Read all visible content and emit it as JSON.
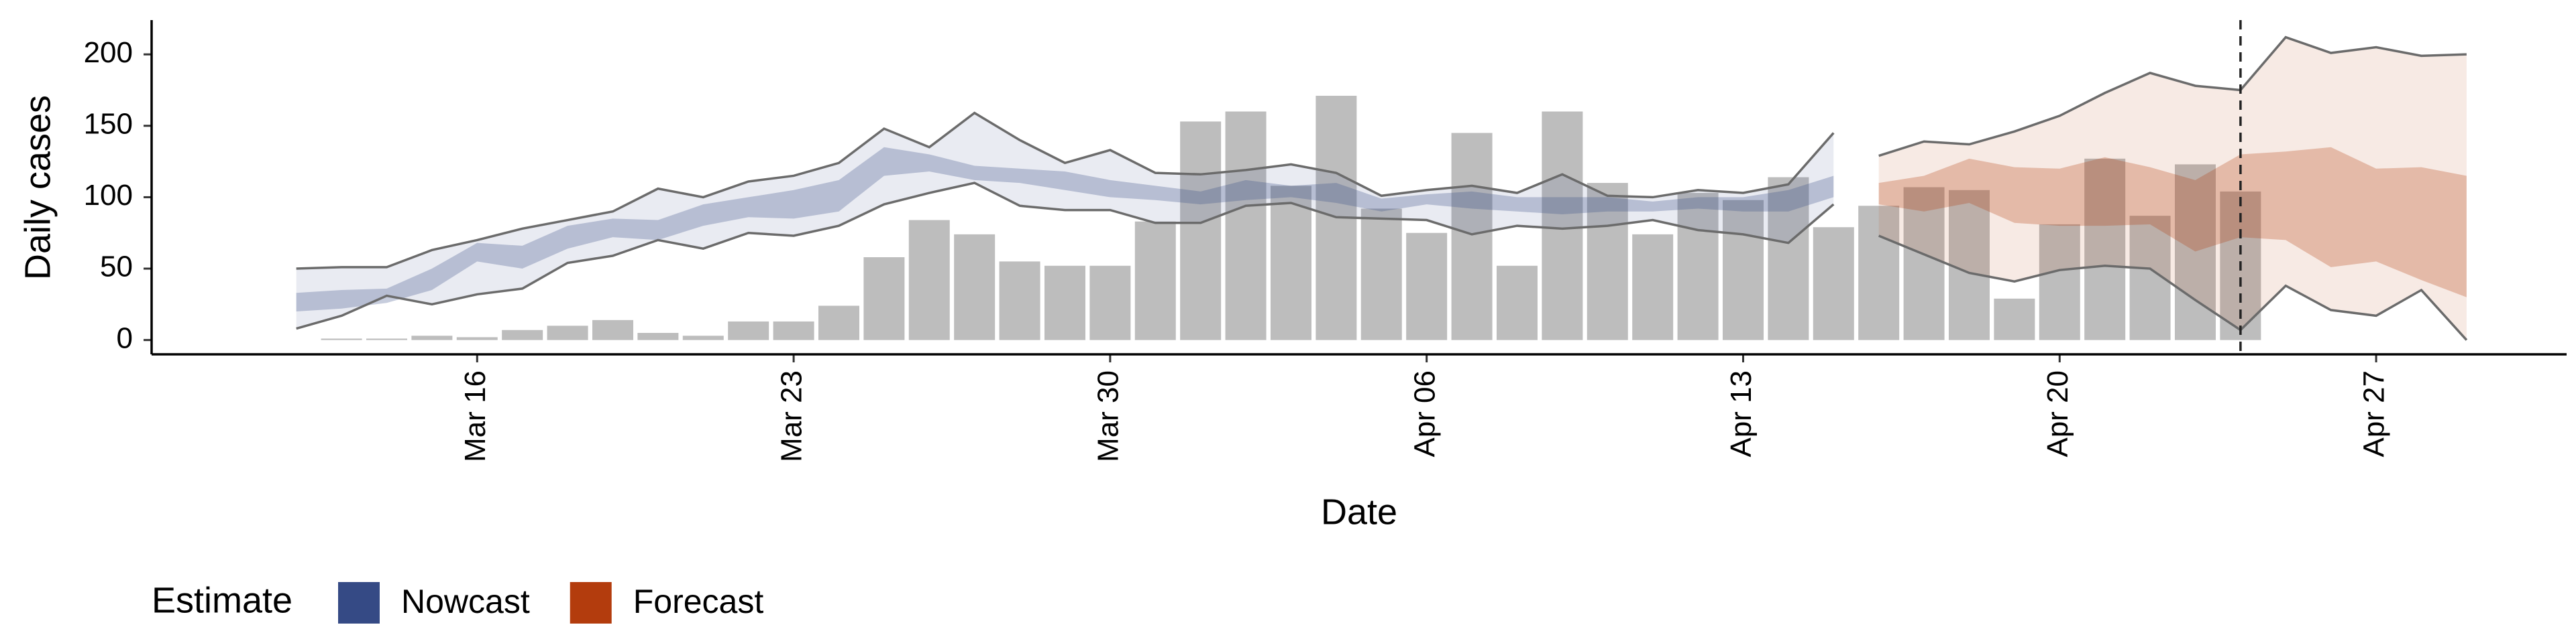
{
  "chart_data": {
    "type": "band",
    "x_label": "Date",
    "y_label": "Daily cases",
    "legend_title": "Estimate",
    "legend": "bottom-left",
    "categories": [
      null,
      null,
      null,
      null,
      "Mar 16",
      null,
      null,
      null,
      null,
      null,
      null,
      "Mar 23",
      null,
      null,
      null,
      null,
      null,
      null,
      "Mar 30",
      null,
      null,
      null,
      null,
      null,
      null,
      "Apr 06",
      null,
      null,
      null,
      null,
      null,
      null,
      "Apr 13",
      null,
      null,
      null,
      null,
      null,
      null,
      "Apr 20",
      null,
      null,
      null,
      null,
      null,
      null,
      "Apr 27",
      null,
      null
    ],
    "bars": {
      "color": "#bdbdbd",
      "values": [
        null,
        1,
        1,
        3,
        2,
        7,
        10,
        14,
        5,
        3,
        13,
        13,
        24,
        58,
        84,
        74,
        55,
        52,
        52,
        83,
        153,
        160,
        108,
        171,
        92,
        75,
        145,
        52,
        160,
        110,
        74,
        103,
        98,
        114,
        79,
        94,
        107,
        105,
        29,
        81,
        127,
        87,
        123,
        104,
        null,
        null,
        null,
        null,
        null
      ]
    },
    "series": [
      {
        "name": "Nowcast",
        "color": "#354a85",
        "upper_90": [
          50,
          51,
          51,
          63,
          70,
          78,
          84,
          90,
          106,
          100,
          111,
          115,
          124,
          148,
          135,
          159,
          140,
          124,
          133,
          117,
          116,
          119,
          123,
          117,
          101,
          105,
          108,
          103,
          116,
          101,
          100,
          105,
          103,
          109,
          145,
          null,
          null,
          null,
          null,
          null,
          null,
          null,
          null,
          null,
          null,
          null,
          null,
          null,
          null
        ],
        "lower_90": [
          8,
          17,
          31,
          25,
          32,
          36,
          54,
          59,
          70,
          64,
          75,
          73,
          80,
          95,
          103,
          110,
          94,
          91,
          91,
          82,
          82,
          94,
          96,
          86,
          85,
          84,
          74,
          80,
          78,
          80,
          84,
          77,
          74,
          68,
          95,
          null,
          null,
          null,
          null,
          null,
          null,
          null,
          null,
          null,
          null,
          null,
          null,
          null,
          null
        ],
        "upper_50": [
          33,
          35,
          36,
          50,
          68,
          66,
          80,
          85,
          84,
          95,
          100,
          105,
          112,
          135,
          130,
          122,
          120,
          118,
          112,
          108,
          104,
          112,
          108,
          110,
          99,
          102,
          104,
          100,
          100,
          100,
          97,
          100,
          100,
          105,
          115,
          null,
          null,
          null,
          null,
          null,
          null,
          null,
          null,
          null,
          null,
          null,
          null,
          null,
          null
        ],
        "lower_50": [
          20,
          22,
          26,
          35,
          55,
          50,
          64,
          72,
          70,
          80,
          86,
          85,
          90,
          115,
          118,
          112,
          110,
          105,
          100,
          98,
          95,
          98,
          100,
          96,
          90,
          95,
          92,
          90,
          88,
          90,
          90,
          92,
          90,
          90,
          100,
          null,
          null,
          null,
          null,
          null,
          null,
          null,
          null,
          null,
          null,
          null,
          null,
          null,
          null
        ]
      },
      {
        "name": "Forecast",
        "color": "#b33c0d",
        "upper_90": [
          null,
          null,
          null,
          null,
          null,
          null,
          null,
          null,
          null,
          null,
          null,
          null,
          null,
          null,
          null,
          null,
          null,
          null,
          null,
          null,
          null,
          null,
          null,
          null,
          null,
          null,
          null,
          null,
          null,
          null,
          null,
          null,
          null,
          null,
          null,
          129,
          139,
          137,
          146,
          157,
          173,
          187,
          178,
          175,
          212,
          201,
          205,
          199,
          200
        ],
        "lower_90": [
          null,
          null,
          null,
          null,
          null,
          null,
          null,
          null,
          null,
          null,
          null,
          null,
          null,
          null,
          null,
          null,
          null,
          null,
          null,
          null,
          null,
          null,
          null,
          null,
          null,
          null,
          null,
          null,
          null,
          null,
          null,
          null,
          null,
          null,
          null,
          73,
          60,
          47,
          41,
          49,
          52,
          50,
          28,
          7,
          38,
          21,
          17,
          35,
          0
        ],
        "upper_50": [
          null,
          null,
          null,
          null,
          null,
          null,
          null,
          null,
          null,
          null,
          null,
          null,
          null,
          null,
          null,
          null,
          null,
          null,
          null,
          null,
          null,
          null,
          null,
          null,
          null,
          null,
          null,
          null,
          null,
          null,
          null,
          null,
          null,
          null,
          null,
          110,
          115,
          127,
          121,
          120,
          128,
          121,
          112,
          130,
          132,
          135,
          120,
          121,
          115
        ],
        "lower_50": [
          null,
          null,
          null,
          null,
          null,
          null,
          null,
          null,
          null,
          null,
          null,
          null,
          null,
          null,
          null,
          null,
          null,
          null,
          null,
          null,
          null,
          null,
          null,
          null,
          null,
          null,
          null,
          null,
          null,
          null,
          null,
          null,
          null,
          null,
          null,
          95,
          90,
          96,
          82,
          80,
          80,
          81,
          62,
          72,
          70,
          51,
          55,
          42,
          30
        ]
      }
    ],
    "ylim": [
      -10,
      224
    ],
    "yticks": [
      0,
      50,
      100,
      150,
      200
    ]
  }
}
